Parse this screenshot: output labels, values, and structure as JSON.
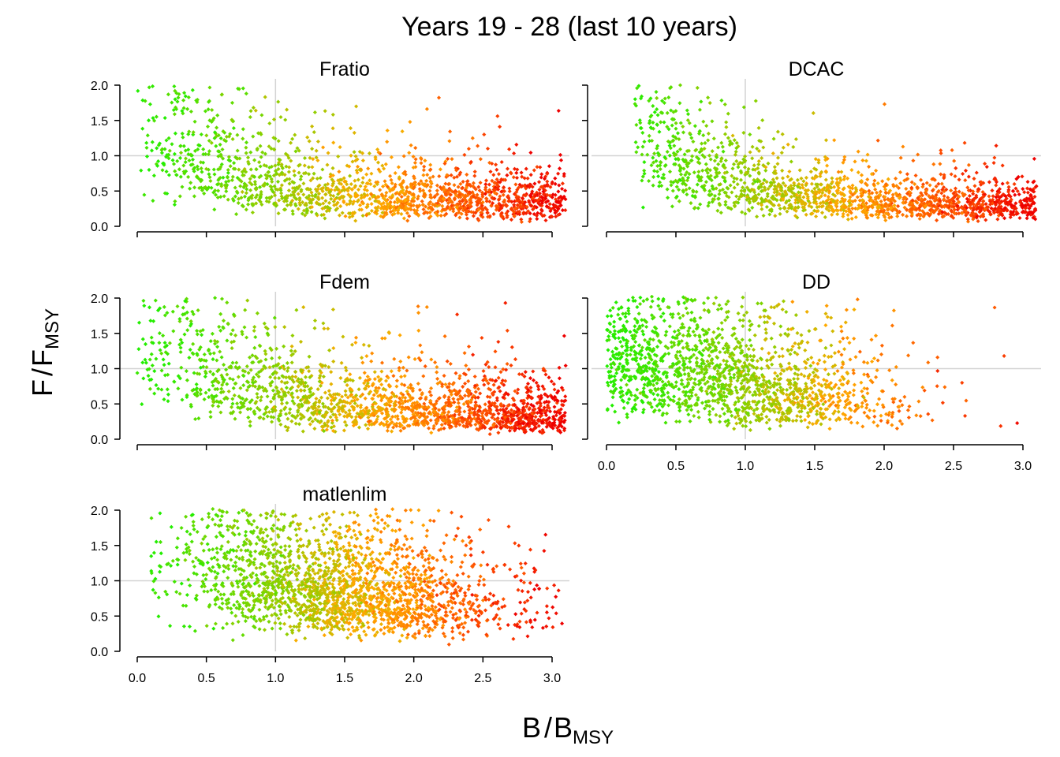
{
  "figure": {
    "title": "Years 19 - 28 (last 10 years)",
    "ylabel_main": "F",
    "ylabel_sub": "MSY",
    "xlabel_main": "B",
    "xlabel_sub": "MSY",
    "ylabel_denominator": "F",
    "xlabel_denominator": "B"
  },
  "colors": {
    "low": "#22ee00",
    "mid_low": "#99cc00",
    "mid": "#ffaa00",
    "mid_high": "#ff5500",
    "high": "#ee0000",
    "refline": "#d3d3d3"
  },
  "chart_data": [
    {
      "type": "scatter",
      "title": "Fratio",
      "xlim": [
        0,
        3.1
      ],
      "ylim": [
        0,
        2.0
      ],
      "xticks": [
        "0.0",
        "0.5",
        "1.0",
        "1.5",
        "2.0",
        "2.5",
        "3.0"
      ],
      "yticks": [
        "0.0",
        "0.5",
        "1.0",
        "1.5",
        "2.0"
      ],
      "show_x_tick_labels": false,
      "reference_lines": {
        "x": 1.0,
        "y": 1.0
      },
      "cloud": {
        "count": 1700,
        "b_min": 0.0,
        "b_max": 3.1,
        "mode": "fratio"
      }
    },
    {
      "type": "scatter",
      "title": "DCAC",
      "xlim": [
        0,
        3.1
      ],
      "ylim": [
        0,
        2.0
      ],
      "xticks": [
        "0.0",
        "0.5",
        "1.0",
        "1.5",
        "2.0",
        "2.5",
        "3.0"
      ],
      "yticks": [
        "0.0",
        "0.5",
        "1.0",
        "1.5",
        "2.0"
      ],
      "show_x_tick_labels": false,
      "show_y_tick_labels": false,
      "reference_lines": {
        "x": 1.0,
        "y": 1.0
      },
      "cloud": {
        "count": 1700,
        "b_min": 0.2,
        "b_max": 3.1,
        "mode": "dcac"
      }
    },
    {
      "type": "scatter",
      "title": "Fdem",
      "xlim": [
        0,
        3.1
      ],
      "ylim": [
        0,
        2.0
      ],
      "xticks": [
        "0.0",
        "0.5",
        "1.0",
        "1.5",
        "2.0",
        "2.5",
        "3.0"
      ],
      "yticks": [
        "0.0",
        "0.5",
        "1.0",
        "1.5",
        "2.0"
      ],
      "show_x_tick_labels": false,
      "reference_lines": {
        "x": 1.0,
        "y": 1.0
      },
      "cloud": {
        "count": 1900,
        "b_min": 0.0,
        "b_max": 3.1,
        "mode": "fdem"
      }
    },
    {
      "type": "scatter",
      "title": "DD",
      "xlim": [
        0,
        3.1
      ],
      "ylim": [
        0,
        2.0
      ],
      "xticks": [
        "0.0",
        "0.5",
        "1.0",
        "1.5",
        "2.0",
        "2.5",
        "3.0"
      ],
      "yticks": [
        "0.0",
        "0.5",
        "1.0",
        "1.5",
        "2.0"
      ],
      "show_x_tick_labels": true,
      "show_y_tick_labels": false,
      "reference_lines": {
        "x": 1.0,
        "y": 1.0
      },
      "cloud": {
        "count": 1900,
        "b_min": 0.0,
        "b_max": 3.1,
        "mode": "dd"
      }
    },
    {
      "type": "scatter",
      "title": "matlenlim",
      "xlim": [
        0,
        3.1
      ],
      "ylim": [
        0,
        2.0
      ],
      "xticks": [
        "0.0",
        "0.5",
        "1.0",
        "1.5",
        "2.0",
        "2.5",
        "3.0"
      ],
      "yticks": [
        "0.0",
        "0.5",
        "1.0",
        "1.5",
        "2.0"
      ],
      "show_x_tick_labels": true,
      "reference_lines": {
        "x": 1.0,
        "y": 1.0
      },
      "cloud": {
        "count": 2400,
        "b_min": 0.1,
        "b_max": 3.1,
        "mode": "matlen"
      }
    }
  ]
}
